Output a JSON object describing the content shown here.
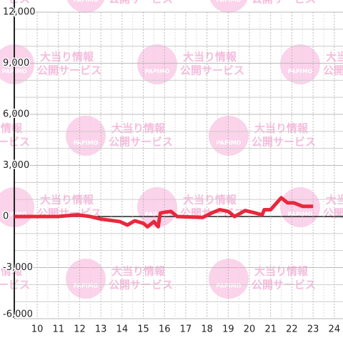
{
  "chart_data": {
    "type": "line",
    "x": [
      8.92,
      10.95,
      11.9,
      12.5,
      13.0,
      13.9,
      14.25,
      14.6,
      15.0,
      15.2,
      15.5,
      15.7,
      15.8,
      16.0,
      16.3,
      16.6,
      17.8,
      18.3,
      18.6,
      19.0,
      19.3,
      19.8,
      20.3,
      20.6,
      20.7,
      21.0,
      21.5,
      21.8,
      22.1,
      22.5,
      23.0
    ],
    "series": [
      {
        "color": "#e8283c",
        "values": [
          0,
          0,
          100,
          0,
          -150,
          -300,
          -500,
          -250,
          -400,
          -600,
          -300,
          -600,
          200,
          250,
          300,
          0,
          -50,
          250,
          400,
          300,
          0,
          350,
          200,
          100,
          400,
          400,
          1100,
          800,
          800,
          600,
          600
        ]
      }
    ],
    "xlim": [
      8.92,
      24.41
    ],
    "xticks": [
      10,
      11,
      12,
      13,
      14,
      15,
      16,
      17,
      18,
      19,
      20,
      21,
      22,
      23,
      24
    ],
    "xminorticks": [
      9.5,
      10.5,
      11.5,
      12.5,
      13.5,
      14.5,
      15.5,
      16.5,
      17.5,
      18.5,
      19.5,
      20.5,
      21.5,
      22.5,
      23.5
    ],
    "ylim": [
      -6000,
      12000
    ],
    "yticks": [
      {
        "value": -6000,
        "label": "-6,000"
      },
      {
        "value": -3000,
        "label": "-3,000"
      },
      0,
      {
        "value": 3000,
        "label": "3,000"
      },
      {
        "value": 6000,
        "label": "6,000"
      },
      {
        "value": 9000,
        "label": "9,000"
      },
      {
        "value": 12000,
        "label": "12,000"
      }
    ],
    "yminorticks": [
      -5000,
      -4000,
      -2000,
      -1000,
      1000,
      2000,
      4000,
      5000,
      7000,
      8000,
      10000,
      11000
    ],
    "grid": true
  },
  "watermark": {
    "logo": "PAPIMO",
    "lines": [
      "大当り情報",
      "公開サービス"
    ]
  }
}
